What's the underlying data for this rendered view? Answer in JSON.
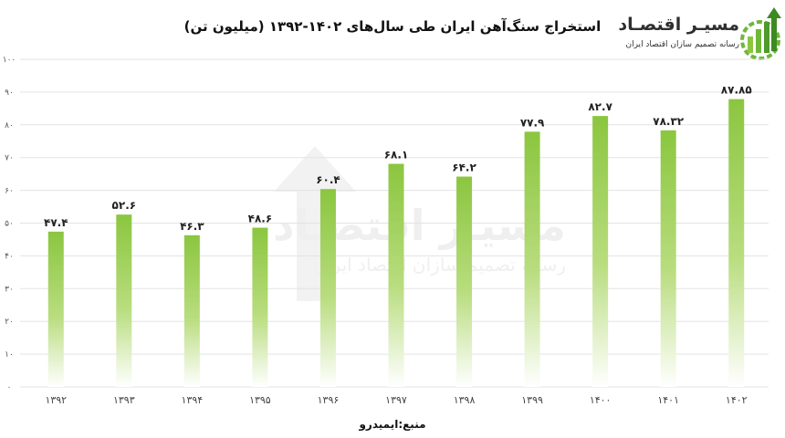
{
  "chart_data": {
    "type": "bar",
    "title": "استخراج سنگ‌آهن ایران طی سال‌های ۱۴۰۲-۱۳۹۲ (میلیون تن)",
    "categories": [
      "۱۳۹۲",
      "۱۳۹۳",
      "۱۳۹۴",
      "۱۳۹۵",
      "۱۳۹۶",
      "۱۳۹۷",
      "۱۳۹۸",
      "۱۳۹۹",
      "۱۴۰۰",
      "۱۴۰۱",
      "۱۴۰۲"
    ],
    "values": [
      47.4,
      52.6,
      46.3,
      48.6,
      60.4,
      68.1,
      64.2,
      77.9,
      82.7,
      78.32,
      87.85
    ],
    "value_labels": [
      "۴۷.۴",
      "۵۲.۶",
      "۴۶.۳",
      "۴۸.۶",
      "۶۰.۴",
      "۶۸.۱",
      "۶۴.۲",
      "۷۷.۹",
      "۸۲.۷",
      "۷۸.۳۲",
      "۸۷.۸۵"
    ],
    "yticks": [
      0,
      10,
      20,
      30,
      40,
      50,
      60,
      70,
      80,
      90,
      100
    ],
    "ytick_labels": [
      "۰",
      "۱۰",
      "۲۰",
      "۳۰",
      "۴۰",
      "۵۰",
      "۶۰",
      "۷۰",
      "۸۰",
      "۹۰",
      "۱۰۰"
    ],
    "ylim": [
      0,
      100
    ],
    "grid": true,
    "legend": "none",
    "colors": {
      "bar_top": "#8bc63f",
      "bar_bottom": "#ffffff",
      "grid": "#e3e3e3",
      "text": "#222222"
    }
  },
  "source": "منبع:ایمیدرو",
  "logo": {
    "name": "مسیـر اقتصـاد",
    "tagline": "رسانه تصمیم سازان اقتصاد ایران",
    "icon": "bar-chart-gear-arrow-icon"
  }
}
